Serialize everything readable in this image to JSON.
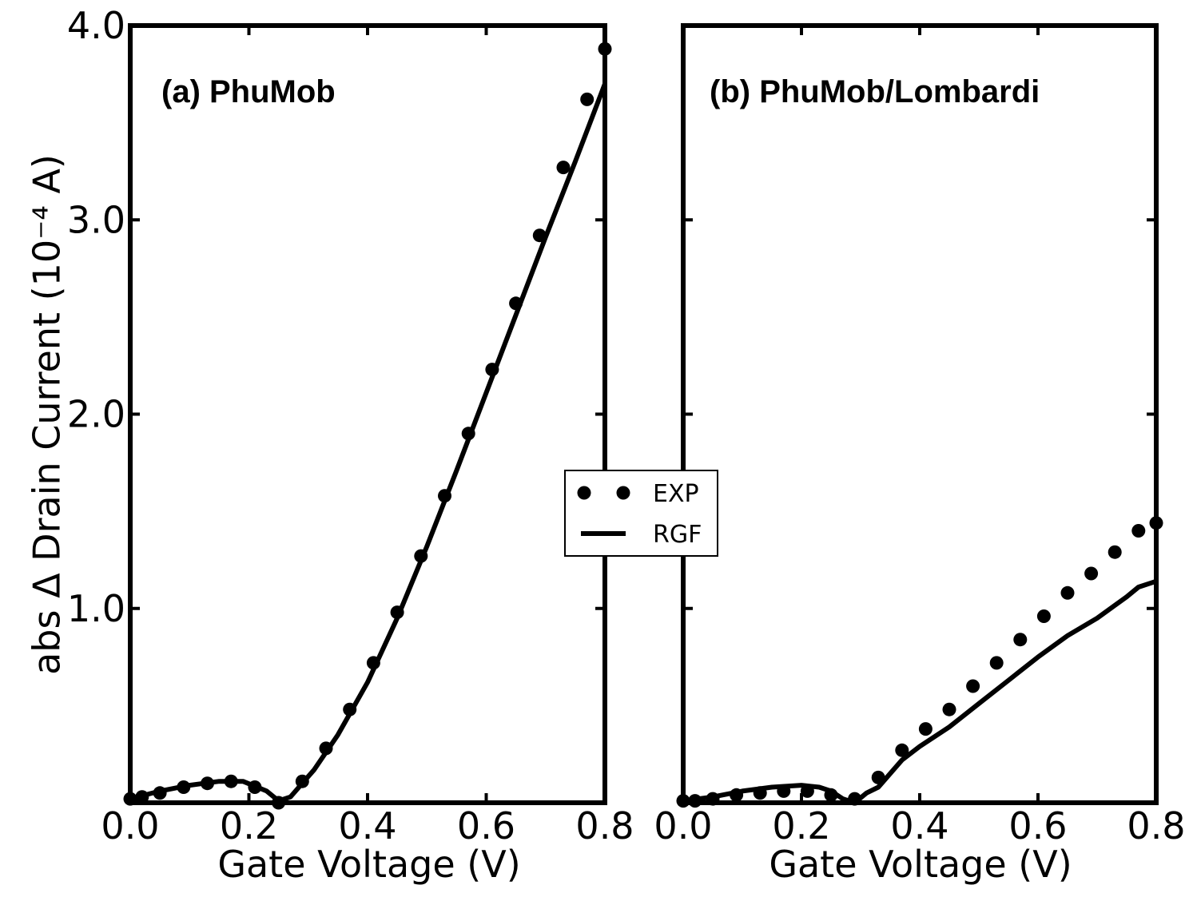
{
  "chart_data": [
    {
      "type": "line",
      "panel_title": "(a) PhuMob",
      "xlabel": "Gate Voltage (V)",
      "ylabel": "abs Δ Drain Current (10⁻⁴ A)",
      "xlim": [
        0.0,
        0.8
      ],
      "ylim": [
        0.0,
        4.0
      ],
      "xticks": [
        "0.0",
        "0.2",
        "0.4",
        "0.6",
        "0.8"
      ],
      "yticks": [
        "1.0",
        "2.0",
        "3.0",
        "4.0"
      ],
      "series": [
        {
          "name": "EXP",
          "style": "markers",
          "x": [
            0.0,
            0.02,
            0.05,
            0.09,
            0.13,
            0.17,
            0.21,
            0.25,
            0.29,
            0.33,
            0.37,
            0.41,
            0.45,
            0.49,
            0.53,
            0.57,
            0.61,
            0.65,
            0.69,
            0.73,
            0.77,
            0.8
          ],
          "y": [
            0.02,
            0.03,
            0.05,
            0.08,
            0.1,
            0.11,
            0.08,
            0.0,
            0.11,
            0.28,
            0.48,
            0.72,
            0.98,
            1.27,
            1.58,
            1.9,
            2.23,
            2.57,
            2.92,
            3.27,
            3.62,
            3.88
          ]
        },
        {
          "name": "RGF",
          "style": "line",
          "x": [
            0.0,
            0.05,
            0.1,
            0.15,
            0.19,
            0.23,
            0.25,
            0.27,
            0.31,
            0.35,
            0.4,
            0.45,
            0.5,
            0.55,
            0.6,
            0.65,
            0.7,
            0.75,
            0.8
          ],
          "y": [
            0.02,
            0.06,
            0.09,
            0.11,
            0.11,
            0.06,
            0.01,
            0.03,
            0.17,
            0.35,
            0.62,
            0.95,
            1.32,
            1.71,
            2.11,
            2.51,
            2.91,
            3.3,
            3.7
          ]
        }
      ],
      "grid": false
    },
    {
      "type": "line",
      "panel_title": "(b) PhuMob/Lombardi",
      "xlabel": "Gate Voltage (V)",
      "xlim": [
        0.0,
        0.8
      ],
      "ylim": [
        0.0,
        4.0
      ],
      "xticks": [
        "0.0",
        "0.2",
        "0.4",
        "0.6",
        "0.8"
      ],
      "series": [
        {
          "name": "EXP",
          "style": "markers",
          "x": [
            0.0,
            0.02,
            0.05,
            0.09,
            0.13,
            0.17,
            0.21,
            0.25,
            0.29,
            0.33,
            0.37,
            0.41,
            0.45,
            0.49,
            0.53,
            0.57,
            0.61,
            0.65,
            0.69,
            0.73,
            0.77,
            0.8
          ],
          "y": [
            0.01,
            0.01,
            0.02,
            0.04,
            0.05,
            0.06,
            0.06,
            0.04,
            0.02,
            0.13,
            0.27,
            0.38,
            0.48,
            0.6,
            0.72,
            0.84,
            0.96,
            1.08,
            1.18,
            1.29,
            1.4,
            1.44
          ],
          "legend": "center-left"
        },
        {
          "name": "RGF",
          "style": "line",
          "x": [
            0.0,
            0.05,
            0.1,
            0.15,
            0.2,
            0.23,
            0.25,
            0.27,
            0.29,
            0.31,
            0.33,
            0.37,
            0.4,
            0.45,
            0.5,
            0.55,
            0.6,
            0.65,
            0.7,
            0.75,
            0.77,
            0.8
          ],
          "y": [
            0.01,
            0.03,
            0.06,
            0.08,
            0.09,
            0.08,
            0.06,
            0.02,
            0.0,
            0.05,
            0.08,
            0.22,
            0.29,
            0.39,
            0.51,
            0.63,
            0.75,
            0.86,
            0.95,
            1.06,
            1.11,
            1.14
          ]
        }
      ],
      "grid": false
    }
  ],
  "legend": {
    "position": "center",
    "entries": [
      "EXP",
      "RGF"
    ]
  }
}
